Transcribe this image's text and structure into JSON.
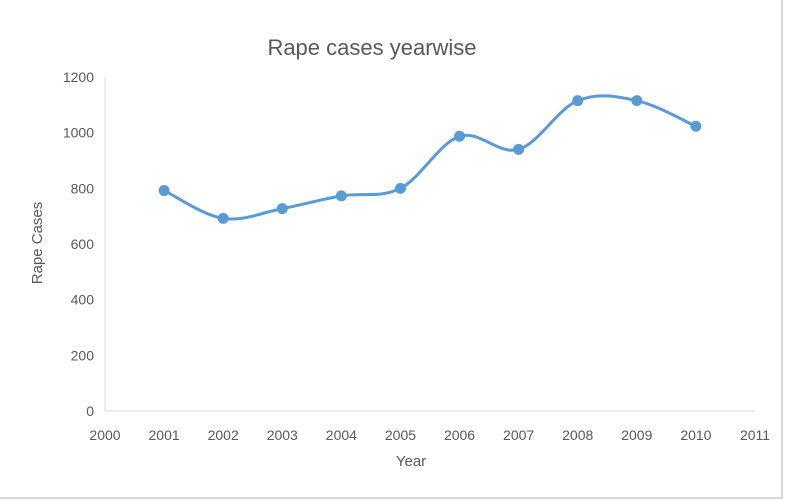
{
  "chart_data": {
    "type": "line",
    "title": "Rape cases yearwise",
    "xlabel": "Year",
    "ylabel": "Rape Cases",
    "xlim": [
      2000,
      2011
    ],
    "ylim": [
      0,
      1200
    ],
    "x_ticks": [
      2000,
      2001,
      2002,
      2003,
      2004,
      2005,
      2006,
      2007,
      2008,
      2009,
      2010,
      2011
    ],
    "y_ticks": [
      0,
      200,
      400,
      600,
      800,
      1000,
      1200
    ],
    "grid": false,
    "legend": "none",
    "smooth": true,
    "series": [
      {
        "color": "#5b9bd5",
        "x": [
          2001,
          2002,
          2003,
          2004,
          2005,
          2006,
          2007,
          2008,
          2009,
          2010
        ],
        "y": [
          792,
          692,
          727,
          773,
          800,
          987,
          940,
          1115,
          1115,
          1023
        ]
      }
    ]
  }
}
